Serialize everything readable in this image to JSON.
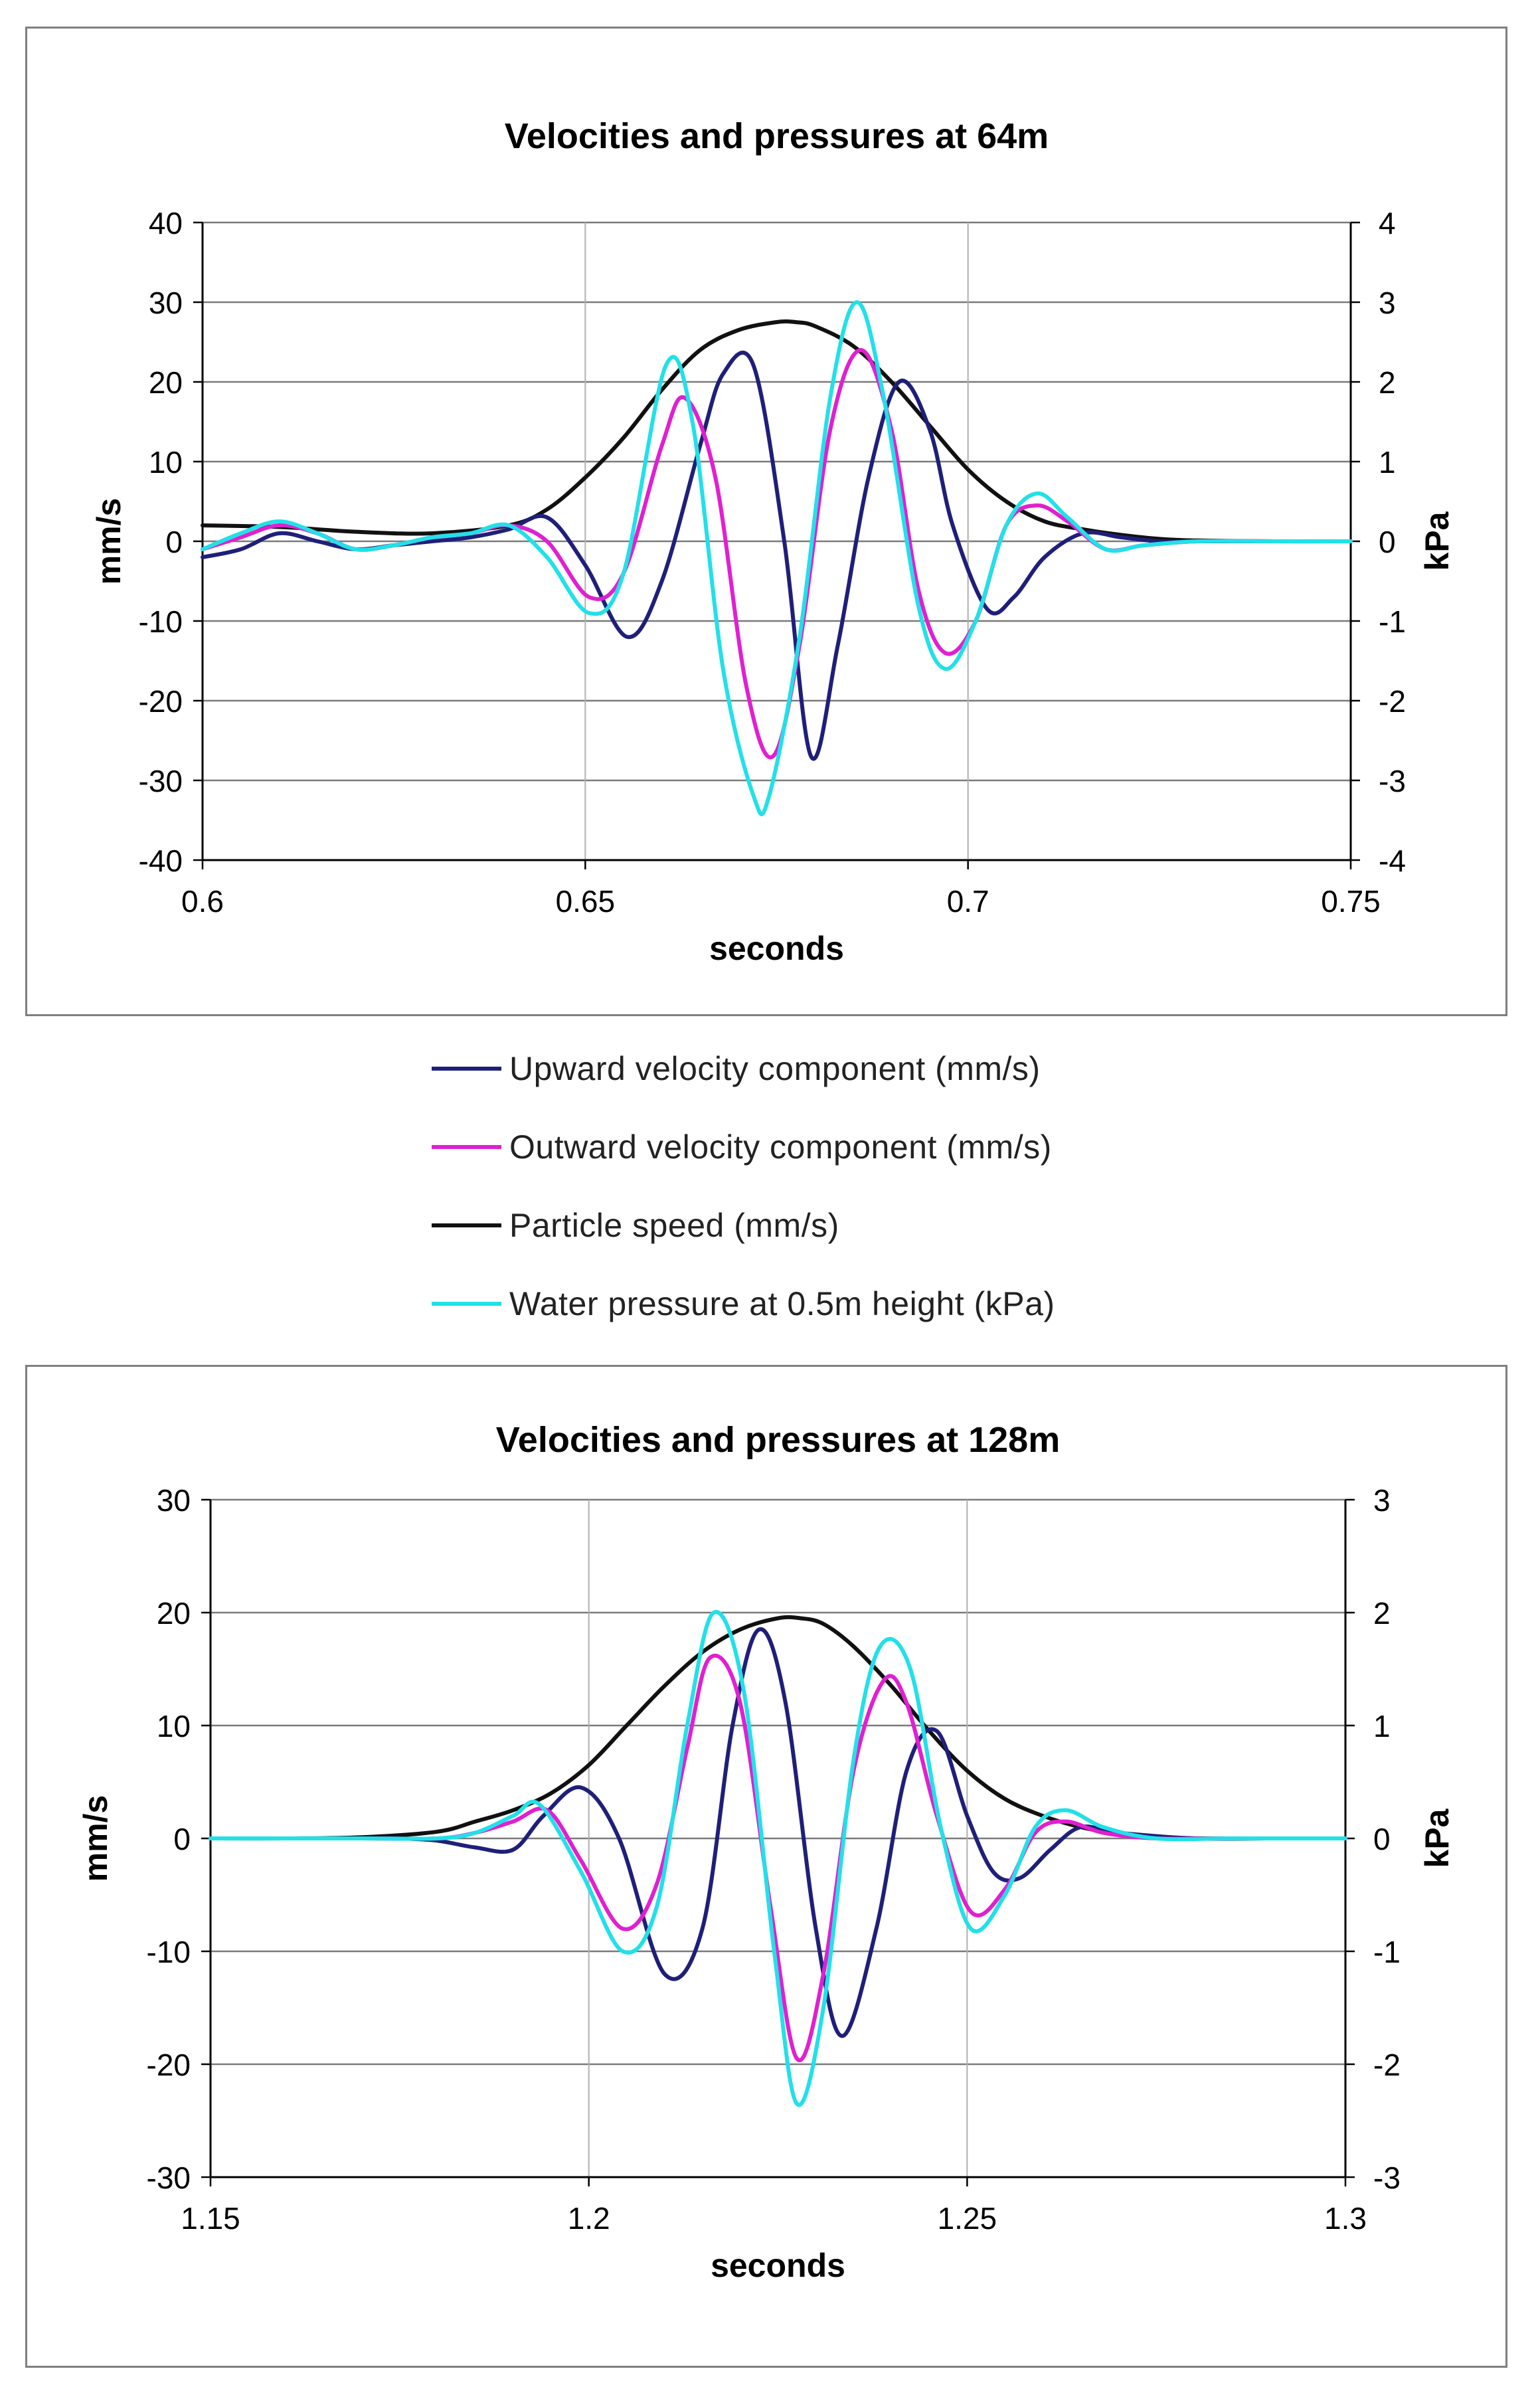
{
  "legend": [
    {
      "label": "Upward velocity component (mm/s)",
      "color": "#1f1f7a"
    },
    {
      "label": "Outward velocity component (mm/s)",
      "color": "#e020d0"
    },
    {
      "label": "Particle speed (mm/s)",
      "color": "#111111"
    },
    {
      "label": "Water pressure at 0.5m height (kPa)",
      "color": "#22e0e8"
    }
  ],
  "chart_data": [
    {
      "type": "line",
      "title": "Velocities and pressures at 64m",
      "xlabel": "seconds",
      "ylabel": "mm/s",
      "y2label": "kPa",
      "xlim": [
        0.6,
        0.75
      ],
      "ylim": [
        -40,
        40
      ],
      "y2lim": [
        -4,
        4
      ],
      "xticks": [
        "0.6",
        "0.65",
        "0.7",
        "0.75"
      ],
      "xtick_values": [
        0.6,
        0.65,
        0.7,
        0.75
      ],
      "yticks": [
        "40",
        "30",
        "20",
        "10",
        "0",
        "-10",
        "-20",
        "-30",
        "-40"
      ],
      "ytick_values": [
        40,
        30,
        20,
        10,
        0,
        -10,
        -20,
        -30,
        -40
      ],
      "y2ticks": [
        "4",
        "3",
        "2",
        "1",
        "0",
        "-1",
        "-2",
        "-3",
        "-4"
      ],
      "y2tick_values": [
        4,
        3,
        2,
        1,
        0,
        -1,
        -2,
        -3,
        -4
      ],
      "series": [
        {
          "name": "Upward velocity component (mm/s)",
          "color": "#1f1f7a",
          "axis": "left",
          "x": [
            0.6,
            0.605,
            0.61,
            0.615,
            0.62,
            0.625,
            0.63,
            0.635,
            0.64,
            0.645,
            0.65,
            0.6555,
            0.66,
            0.665,
            0.668,
            0.672,
            0.676,
            0.6795,
            0.683,
            0.687,
            0.691,
            0.695,
            0.698,
            0.7025,
            0.706,
            0.71,
            0.715,
            0.72,
            0.725,
            0.73,
            0.74,
            0.75
          ],
          "y": [
            -2,
            -1,
            1,
            0,
            -1,
            -0.5,
            0,
            0.5,
            1.5,
            3,
            -3,
            -12,
            -5,
            12,
            21,
            22,
            0,
            -27,
            -13,
            8,
            20,
            14,
            2,
            -8.5,
            -7,
            -2,
            1,
            0.5,
            0,
            0,
            0,
            0
          ]
        },
        {
          "name": "Outward velocity component (mm/s)",
          "color": "#e020d0",
          "axis": "left",
          "x": [
            0.6,
            0.605,
            0.61,
            0.615,
            0.62,
            0.625,
            0.63,
            0.635,
            0.64,
            0.645,
            0.6505,
            0.655,
            0.66,
            0.663,
            0.667,
            0.671,
            0.6745,
            0.678,
            0.682,
            0.686,
            0.69,
            0.6935,
            0.697,
            0.701,
            0.705,
            0.709,
            0.713,
            0.718,
            0.723,
            0.73,
            0.74,
            0.75
          ],
          "y": [
            -1,
            0.5,
            2,
            1,
            -1,
            -0.5,
            0.5,
            1,
            2,
            0,
            -7,
            -4,
            12,
            18,
            8,
            -18,
            -27,
            -13,
            14,
            24,
            14,
            -6,
            -14,
            -10,
            2,
            4.5,
            2.5,
            -1,
            -0.5,
            0,
            0,
            0
          ]
        },
        {
          "name": "Particle speed (mm/s)",
          "color": "#111111",
          "axis": "left",
          "x": [
            0.6,
            0.61,
            0.62,
            0.63,
            0.64,
            0.645,
            0.65,
            0.655,
            0.66,
            0.665,
            0.67,
            0.675,
            0.6775,
            0.68,
            0.685,
            0.69,
            0.695,
            0.7,
            0.705,
            0.71,
            0.715,
            0.72,
            0.725,
            0.73,
            0.74,
            0.75
          ],
          "y": [
            2,
            1.8,
            1.2,
            1,
            2,
            4,
            8,
            13,
            19,
            24,
            26.5,
            27.5,
            27.5,
            27,
            24.5,
            20,
            14.5,
            9,
            5,
            2.5,
            1.5,
            0.8,
            0.3,
            0.1,
            0,
            0
          ]
        },
        {
          "name": "Water pressure at 0.5m height (kPa)",
          "color": "#22e0e8",
          "axis": "right",
          "x": [
            0.6,
            0.605,
            0.61,
            0.615,
            0.62,
            0.625,
            0.63,
            0.635,
            0.64,
            0.645,
            0.6505,
            0.655,
            0.6605,
            0.664,
            0.668,
            0.672,
            0.674,
            0.678,
            0.682,
            0.6855,
            0.689,
            0.6935,
            0.697,
            0.701,
            0.705,
            0.709,
            0.713,
            0.718,
            0.723,
            0.73,
            0.74,
            0.75
          ],
          "y": [
            -0.1,
            0.1,
            0.25,
            0.1,
            -0.1,
            -0.05,
            0.05,
            0.1,
            0.2,
            -0.2,
            -0.9,
            -0.4,
            2.2,
            1.5,
            -1.6,
            -3.2,
            -3.2,
            -1.2,
            1.8,
            3.0,
            1.8,
            -0.8,
            -1.6,
            -1.0,
            0.2,
            0.6,
            0.3,
            -0.1,
            -0.05,
            0,
            0,
            0
          ]
        }
      ]
    },
    {
      "type": "line",
      "title": "Velocities and pressures at 128m",
      "xlabel": "seconds",
      "ylabel": "mm/s",
      "y2label": "kPa",
      "xlim": [
        1.15,
        1.3
      ],
      "ylim": [
        -30,
        30
      ],
      "y2lim": [
        -3,
        3
      ],
      "xticks": [
        "1.15",
        "1.2",
        "1.25",
        "1.3"
      ],
      "xtick_values": [
        1.15,
        1.2,
        1.25,
        1.3
      ],
      "yticks": [
        "30",
        "20",
        "10",
        "0",
        "-10",
        "-20",
        "-30"
      ],
      "ytick_values": [
        30,
        20,
        10,
        0,
        -10,
        -20,
        -30
      ],
      "y2ticks": [
        "3",
        "2",
        "1",
        "0",
        "-1",
        "-2",
        "-3"
      ],
      "y2tick_values": [
        3,
        2,
        1,
        0,
        -1,
        -2,
        -3
      ],
      "series": [
        {
          "name": "Upward velocity component (mm/s)",
          "color": "#1f1f7a",
          "axis": "left",
          "x": [
            1.15,
            1.16,
            1.17,
            1.175,
            1.18,
            1.185,
            1.19,
            1.194,
            1.199,
            1.204,
            1.21,
            1.215,
            1.219,
            1.2225,
            1.226,
            1.23,
            1.2335,
            1.238,
            1.242,
            1.246,
            1.25,
            1.2535,
            1.257,
            1.261,
            1.265,
            1.27,
            1.28,
            1.29,
            1.3
          ],
          "y": [
            0,
            0,
            0,
            0,
            -0.2,
            -0.8,
            -1,
            2,
            4.5,
            0,
            -12,
            -8,
            10,
            18.5,
            12,
            -8,
            -17.5,
            -8,
            6,
            9.5,
            2,
            -3,
            -3.5,
            -1,
            1,
            0.5,
            0,
            0,
            0
          ]
        },
        {
          "name": "Outward velocity component (mm/s)",
          "color": "#e020d0",
          "axis": "left",
          "x": [
            1.15,
            1.16,
            1.17,
            1.18,
            1.185,
            1.19,
            1.1945,
            1.199,
            1.2045,
            1.209,
            1.213,
            1.216,
            1.22,
            1.224,
            1.2275,
            1.231,
            1.235,
            1.239,
            1.242,
            1.246,
            1.2505,
            1.255,
            1.259,
            1.263,
            1.268,
            1.275,
            1.285,
            1.3
          ],
          "y": [
            0,
            0,
            0,
            0,
            0.5,
            1.5,
            2.5,
            -2,
            -8,
            -4,
            8,
            16,
            12,
            -6,
            -19.5,
            -12,
            6,
            14,
            12,
            2,
            -6.5,
            -4.5,
            0.5,
            1.5,
            0.5,
            0,
            0,
            0
          ]
        },
        {
          "name": "Particle speed (mm/s)",
          "color": "#111111",
          "axis": "left",
          "x": [
            1.15,
            1.16,
            1.17,
            1.18,
            1.185,
            1.19,
            1.195,
            1.2,
            1.205,
            1.21,
            1.215,
            1.22,
            1.225,
            1.228,
            1.231,
            1.235,
            1.24,
            1.245,
            1.25,
            1.255,
            1.26,
            1.265,
            1.27,
            1.275,
            1.28,
            1.29,
            1.3
          ],
          "y": [
            0,
            0,
            0.1,
            0.6,
            1.5,
            2.5,
            4,
            6.5,
            10,
            13.5,
            16.5,
            18.5,
            19.5,
            19.5,
            19,
            17,
            13.5,
            9.5,
            6,
            3.5,
            2,
            1,
            0.4,
            0.1,
            0,
            0,
            0
          ]
        },
        {
          "name": "Water pressure at 0.5m height (kPa)",
          "color": "#22e0e8",
          "axis": "right",
          "x": [
            1.15,
            1.16,
            1.17,
            1.18,
            1.185,
            1.19,
            1.1935,
            1.199,
            1.2045,
            1.209,
            1.213,
            1.2165,
            1.2205,
            1.2245,
            1.2275,
            1.231,
            1.235,
            1.2385,
            1.2425,
            1.2465,
            1.2505,
            1.255,
            1.259,
            1.263,
            1.268,
            1.275,
            1.285,
            1.3
          ],
          "y": [
            0,
            0,
            0,
            0,
            0.05,
            0.2,
            0.3,
            -0.3,
            -1.0,
            -0.6,
            1.0,
            2.0,
            1.3,
            -1.0,
            -2.35,
            -1.5,
            0.7,
            1.7,
            1.5,
            0.1,
            -0.8,
            -0.5,
            0.1,
            0.25,
            0.1,
            0,
            0,
            0
          ]
        }
      ]
    }
  ]
}
